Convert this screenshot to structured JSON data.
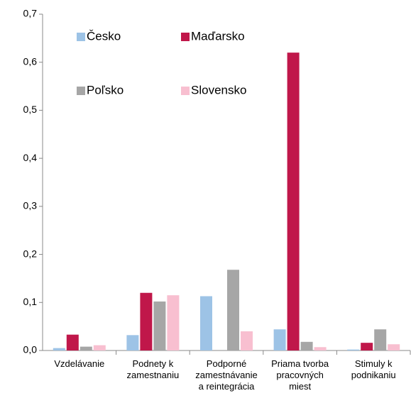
{
  "chart_data": {
    "type": "bar",
    "categories": [
      "Vzdelávanie",
      "Podnety k\nzamestnaniu",
      "Podporné\nzamestnávanie\na reintegrácia",
      "Priama tvorba\npracovných\nmiest",
      "Stimuly k\npodnikaniu"
    ],
    "series": [
      {
        "name": "Česko",
        "color": "#9dc3e6",
        "values": [
          0.005,
          0.032,
          0.113,
          0.044,
          0.002
        ]
      },
      {
        "name": "Maďarsko",
        "color": "#c0174a",
        "values": [
          0.033,
          0.12,
          0,
          0.62,
          0.016
        ]
      },
      {
        "name": "Poľsko",
        "color": "#a6a6a6",
        "values": [
          0.008,
          0.102,
          0.168,
          0.018,
          0.044
        ]
      },
      {
        "name": "Slovensko",
        "color": "#f8bfd0",
        "values": [
          0.011,
          0.115,
          0.04,
          0.007,
          0.013
        ]
      }
    ],
    "ylim": [
      0,
      0.7
    ],
    "yticks": [
      {
        "value": 0,
        "label": "0,0"
      },
      {
        "value": 0.1,
        "label": "0,1"
      },
      {
        "value": 0.2,
        "label": "0,2"
      },
      {
        "value": 0.3,
        "label": "0,3"
      },
      {
        "value": 0.4,
        "label": "0,4"
      },
      {
        "value": 0.5,
        "label": "0,5"
      },
      {
        "value": 0.6,
        "label": "0,6"
      },
      {
        "value": 0.7,
        "label": "0,7"
      }
    ],
    "grid": false
  }
}
